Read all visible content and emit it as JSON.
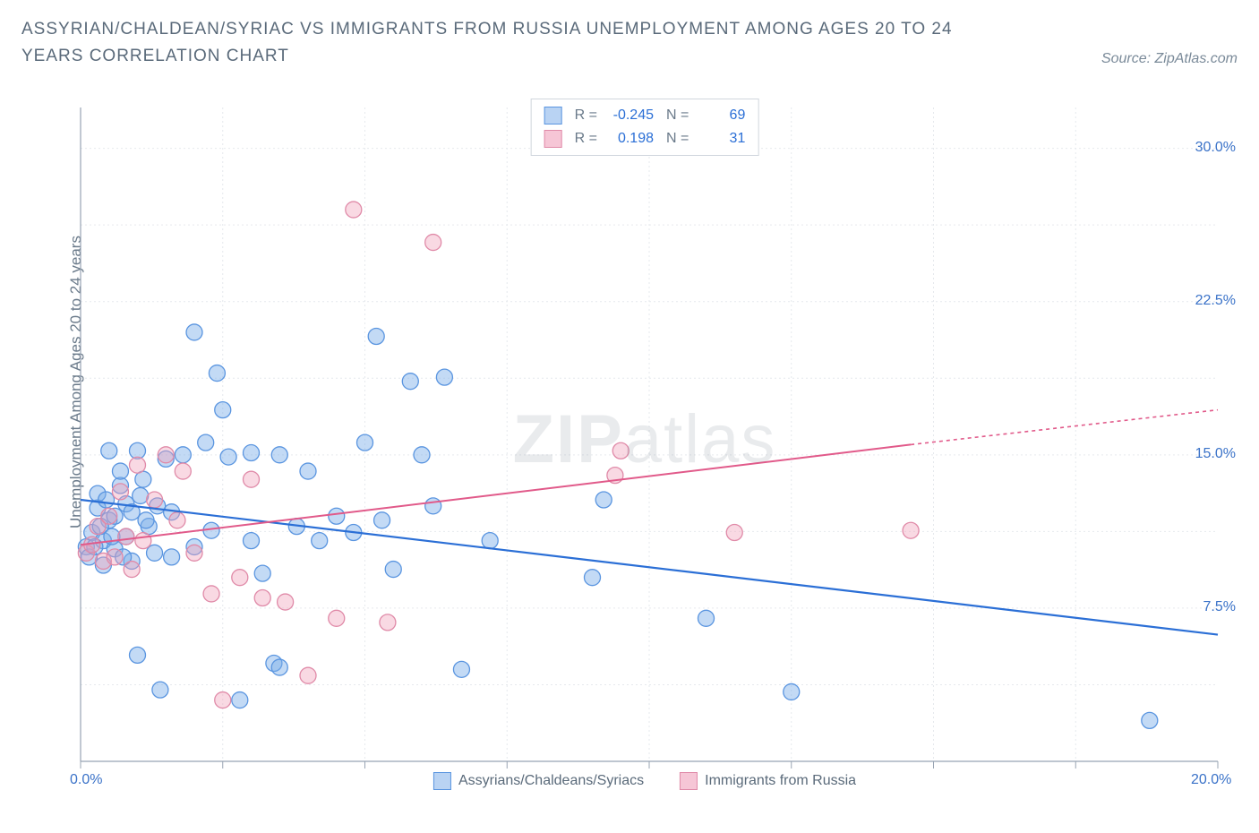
{
  "title": "ASSYRIAN/CHALDEAN/SYRIAC VS IMMIGRANTS FROM RUSSIA UNEMPLOYMENT AMONG AGES 20 TO 24 YEARS CORRELATION CHART",
  "source": "Source: ZipAtlas.com",
  "watermark": {
    "bold": "ZIP",
    "rest": "atlas"
  },
  "chart": {
    "type": "scatter",
    "ylabel": "Unemployment Among Ages 20 to 24 years",
    "background_color": "#ffffff",
    "grid_color": "#e6e9ed",
    "axis_color": "#98a4b3",
    "tick_color": "#3a72c8",
    "xlim": [
      0,
      20
    ],
    "ylim": [
      0,
      32
    ],
    "xticks": [
      {
        "v": 0,
        "l": "0.0%"
      },
      {
        "v": 20,
        "l": "20.0%"
      }
    ],
    "yticks": [
      {
        "v": 7.5,
        "l": "7.5%"
      },
      {
        "v": 15,
        "l": "15.0%"
      },
      {
        "v": 22.5,
        "l": "22.5%"
      },
      {
        "v": 30,
        "l": "30.0%"
      }
    ],
    "x_gridlines": [
      2.5,
      5,
      7.5,
      10,
      12.5,
      15,
      17.5
    ],
    "y_gridlines": [
      0,
      3.75,
      7.5,
      11.25,
      15,
      18.75,
      22.5,
      26.25,
      30
    ],
    "legend_stats": [
      {
        "swatch_fill": "#b9d3f3",
        "swatch_stroke": "#5a95e0",
        "r_label": "R =",
        "r": "-0.245",
        "n_label": "N =",
        "n": "69"
      },
      {
        "swatch_fill": "#f6c6d6",
        "swatch_stroke": "#e08aa8",
        "r_label": "R =",
        "r": "0.198",
        "n_label": "N =",
        "n": "31"
      }
    ],
    "legend_bottom": [
      {
        "swatch_fill": "#b9d3f3",
        "swatch_stroke": "#5a95e0",
        "label": "Assyrians/Chaldeans/Syriacs"
      },
      {
        "swatch_fill": "#f6c6d6",
        "swatch_stroke": "#e08aa8",
        "label": "Immigrants from Russia"
      }
    ],
    "series": [
      {
        "name": "Assyrians/Chaldeans/Syriacs",
        "marker_fill": "rgba(123,172,232,0.45)",
        "marker_stroke": "#5a95e0",
        "marker_r": 9,
        "trend": {
          "color": "#2b6fd6",
          "width": 2.2,
          "x1": 0,
          "y1": 12.8,
          "x2": 20,
          "y2": 6.2
        },
        "points": [
          [
            0.1,
            10.5
          ],
          [
            0.2,
            11.2
          ],
          [
            0.3,
            12.4
          ],
          [
            0.3,
            13.1
          ],
          [
            0.4,
            10.8
          ],
          [
            0.4,
            9.6
          ],
          [
            0.5,
            11.8
          ],
          [
            0.5,
            15.2
          ],
          [
            0.6,
            12.0
          ],
          [
            0.6,
            10.4
          ],
          [
            0.7,
            13.5
          ],
          [
            0.7,
            14.2
          ],
          [
            0.8,
            11.0
          ],
          [
            0.8,
            12.6
          ],
          [
            0.9,
            9.8
          ],
          [
            1.0,
            15.2
          ],
          [
            1.0,
            5.2
          ],
          [
            1.1,
            13.8
          ],
          [
            1.2,
            11.5
          ],
          [
            1.3,
            10.2
          ],
          [
            1.4,
            3.5
          ],
          [
            1.5,
            14.8
          ],
          [
            1.6,
            12.2
          ],
          [
            1.8,
            15.0
          ],
          [
            2.0,
            10.5
          ],
          [
            2.0,
            21.0
          ],
          [
            2.2,
            15.6
          ],
          [
            2.3,
            11.3
          ],
          [
            2.4,
            19.0
          ],
          [
            2.5,
            17.2
          ],
          [
            2.6,
            14.9
          ],
          [
            2.8,
            3.0
          ],
          [
            3.0,
            15.1
          ],
          [
            3.0,
            10.8
          ],
          [
            3.2,
            9.2
          ],
          [
            3.4,
            4.8
          ],
          [
            3.5,
            4.6
          ],
          [
            3.5,
            15.0
          ],
          [
            3.8,
            11.5
          ],
          [
            4.0,
            14.2
          ],
          [
            4.2,
            10.8
          ],
          [
            4.5,
            12.0
          ],
          [
            4.8,
            11.2
          ],
          [
            5.0,
            15.6
          ],
          [
            5.2,
            20.8
          ],
          [
            5.3,
            11.8
          ],
          [
            5.5,
            9.4
          ],
          [
            5.8,
            18.6
          ],
          [
            6.0,
            15.0
          ],
          [
            6.2,
            12.5
          ],
          [
            6.4,
            18.8
          ],
          [
            6.7,
            4.5
          ],
          [
            7.2,
            10.8
          ],
          [
            9.0,
            9.0
          ],
          [
            9.2,
            12.8
          ],
          [
            11.0,
            7.0
          ],
          [
            12.5,
            3.4
          ],
          [
            18.8,
            2.0
          ],
          [
            0.15,
            10.0
          ],
          [
            0.25,
            10.5
          ],
          [
            0.35,
            11.5
          ],
          [
            0.45,
            12.8
          ],
          [
            0.55,
            11.0
          ],
          [
            0.75,
            10.0
          ],
          [
            0.9,
            12.2
          ],
          [
            1.05,
            13.0
          ],
          [
            1.15,
            11.8
          ],
          [
            1.35,
            12.5
          ],
          [
            1.6,
            10.0
          ]
        ]
      },
      {
        "name": "Immigrants from Russia",
        "marker_fill": "rgba(240,160,185,0.40)",
        "marker_stroke": "#e08aa8",
        "marker_r": 9,
        "trend": {
          "color": "#e15a8a",
          "width": 2,
          "x1": 0,
          "y1": 10.6,
          "x2": 14.6,
          "y2": 15.5,
          "dash_from": 14.6,
          "x3": 20,
          "y3": 17.2
        },
        "points": [
          [
            0.1,
            10.2
          ],
          [
            0.2,
            10.6
          ],
          [
            0.3,
            11.5
          ],
          [
            0.4,
            9.8
          ],
          [
            0.5,
            12.0
          ],
          [
            0.6,
            10.0
          ],
          [
            0.7,
            13.2
          ],
          [
            0.8,
            11.0
          ],
          [
            0.9,
            9.4
          ],
          [
            1.0,
            14.5
          ],
          [
            1.1,
            10.8
          ],
          [
            1.3,
            12.8
          ],
          [
            1.5,
            15.0
          ],
          [
            1.7,
            11.8
          ],
          [
            1.8,
            14.2
          ],
          [
            2.0,
            10.2
          ],
          [
            2.3,
            8.2
          ],
          [
            2.5,
            3.0
          ],
          [
            2.8,
            9.0
          ],
          [
            3.0,
            13.8
          ],
          [
            3.2,
            8.0
          ],
          [
            3.6,
            7.8
          ],
          [
            4.0,
            4.2
          ],
          [
            4.5,
            7.0
          ],
          [
            4.8,
            27.0
          ],
          [
            5.4,
            6.8
          ],
          [
            6.2,
            25.4
          ],
          [
            9.4,
            14.0
          ],
          [
            9.5,
            15.2
          ],
          [
            11.5,
            11.2
          ],
          [
            14.6,
            11.3
          ]
        ]
      }
    ]
  }
}
